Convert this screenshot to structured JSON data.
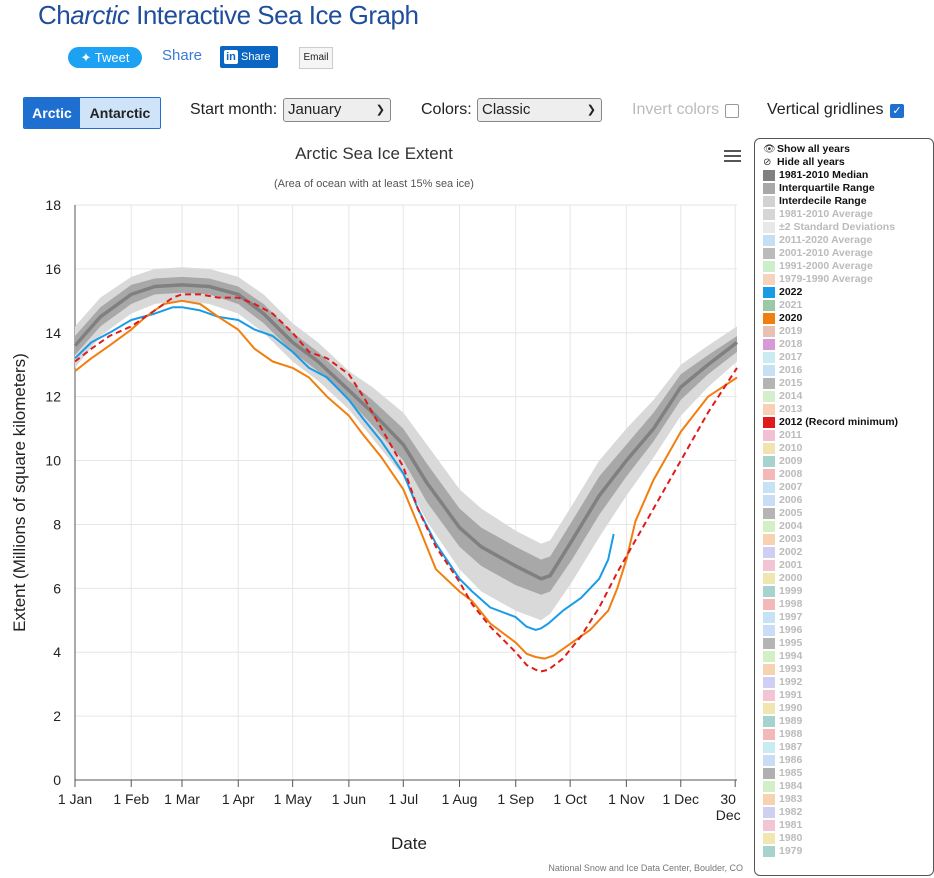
{
  "page": {
    "title_prefix": "Ch",
    "title_italic": "arctic",
    "title_suffix": " Interactive Sea Ice Graph"
  },
  "share": {
    "tweet": "Tweet",
    "share": "Share",
    "linkedin": "Share",
    "linkedin_logo": "in",
    "email": "Email"
  },
  "controls": {
    "arctic": "Arctic",
    "antarctic": "Antarctic",
    "start_month_label": "Start month:",
    "start_month_value": "January",
    "colors_label": "Colors:",
    "colors_value": "Classic",
    "invert_label": "Invert colors",
    "invert_checked": false,
    "gridlines_label": "Vertical gridlines",
    "gridlines_checked": true
  },
  "chart_data": {
    "type": "line",
    "title": "Arctic Sea Ice Extent",
    "subtitle": "(Area of ocean with at least 15% sea ice)",
    "xlabel": "Date",
    "ylabel": "Extent (Millions of square kilometers)",
    "credit": "National Snow and Ice Data Center, Boulder, CO",
    "ylim": [
      0,
      18
    ],
    "y_ticks": [
      0,
      2,
      4,
      6,
      8,
      10,
      12,
      14,
      16,
      18
    ],
    "xlim_day_of_year": [
      1,
      366
    ],
    "x_ticks": [
      {
        "day": 1,
        "label": "1 Jan"
      },
      {
        "day": 32,
        "label": "1 Feb"
      },
      {
        "day": 60,
        "label": "1 Mar"
      },
      {
        "day": 91,
        "label": "1 Apr"
      },
      {
        "day": 121,
        "label": "1 May"
      },
      {
        "day": 152,
        "label": "1 Jun"
      },
      {
        "day": 182,
        "label": "1 Jul"
      },
      {
        "day": 213,
        "label": "1 Aug"
      },
      {
        "day": 244,
        "label": "1 Sep"
      },
      {
        "day": 274,
        "label": "1 Oct"
      },
      {
        "day": 305,
        "label": "1 Nov"
      },
      {
        "day": 335,
        "label": "1 Dec"
      },
      {
        "day": 365,
        "label": "30",
        "label2": "Dec"
      }
    ],
    "vertical_gridlines": true,
    "series": [
      {
        "name": "1981-2010 Median",
        "color": "#808080",
        "x": [
          1,
          15,
          32,
          45,
          60,
          75,
          91,
          105,
          121,
          135,
          152,
          165,
          182,
          195,
          213,
          225,
          244,
          258,
          263,
          275,
          290,
          305,
          320,
          335,
          350,
          366
        ],
        "y": [
          13.6,
          14.5,
          15.2,
          15.45,
          15.5,
          15.45,
          15.2,
          14.6,
          13.7,
          13.1,
          12.2,
          11.5,
          10.5,
          9.3,
          7.9,
          7.3,
          6.7,
          6.3,
          6.4,
          7.5,
          8.9,
          10.0,
          11.0,
          12.3,
          13.0,
          13.7
        ]
      },
      {
        "name": "Interquartile Range",
        "color": "#a8a8a8",
        "x": [
          1,
          15,
          32,
          45,
          60,
          75,
          91,
          105,
          121,
          135,
          152,
          165,
          182,
          195,
          213,
          225,
          244,
          258,
          263,
          275,
          290,
          305,
          320,
          335,
          350,
          366
        ],
        "y_low": [
          13.3,
          14.2,
          14.9,
          15.2,
          15.25,
          15.2,
          14.9,
          14.3,
          13.4,
          12.8,
          11.9,
          11.1,
          10.0,
          8.7,
          7.3,
          6.7,
          6.1,
          5.8,
          5.9,
          6.9,
          8.3,
          9.5,
          10.6,
          11.9,
          12.7,
          13.4
        ],
        "y_high": [
          13.9,
          14.8,
          15.5,
          15.7,
          15.75,
          15.7,
          15.45,
          14.9,
          14.0,
          13.4,
          12.5,
          11.9,
          11.0,
          9.9,
          8.5,
          7.9,
          7.3,
          6.9,
          7.0,
          8.1,
          9.5,
          10.5,
          11.5,
          12.7,
          13.3,
          13.9
        ]
      },
      {
        "name": "Interdecile Range",
        "color": "#d9d9d9",
        "x": [
          1,
          15,
          32,
          45,
          60,
          75,
          91,
          105,
          121,
          135,
          152,
          165,
          182,
          195,
          213,
          225,
          244,
          258,
          263,
          275,
          290,
          305,
          320,
          335,
          350,
          366
        ],
        "y_low": [
          12.9,
          13.9,
          14.6,
          14.9,
          15.0,
          14.9,
          14.6,
          14.0,
          13.1,
          12.5,
          11.6,
          10.7,
          9.5,
          8.1,
          6.6,
          5.9,
          5.3,
          5.0,
          5.2,
          6.2,
          7.6,
          8.9,
          10.1,
          11.4,
          12.3,
          13.1
        ],
        "y_high": [
          14.2,
          15.1,
          15.75,
          16.0,
          16.05,
          16.0,
          15.75,
          15.2,
          14.3,
          13.7,
          12.8,
          12.3,
          11.5,
          10.5,
          9.1,
          8.5,
          7.8,
          7.4,
          7.5,
          8.6,
          10.0,
          11.0,
          11.9,
          13.0,
          13.6,
          14.2
        ]
      },
      {
        "name": "2022",
        "color": "#1a9be6",
        "x": [
          1,
          10,
          20,
          32,
          45,
          55,
          60,
          70,
          80,
          91,
          100,
          110,
          121,
          130,
          140,
          152,
          160,
          170,
          182,
          190,
          200,
          213,
          220,
          230,
          244,
          250,
          255,
          258,
          262,
          270,
          280,
          290,
          295,
          298
        ],
        "y": [
          13.2,
          13.7,
          14.0,
          14.4,
          14.6,
          14.8,
          14.8,
          14.7,
          14.5,
          14.4,
          14.1,
          13.9,
          13.4,
          12.9,
          12.6,
          11.9,
          11.3,
          10.6,
          9.6,
          8.5,
          7.4,
          6.3,
          5.9,
          5.4,
          5.1,
          4.8,
          4.7,
          4.75,
          4.9,
          5.3,
          5.7,
          6.3,
          6.9,
          7.7
        ]
      },
      {
        "name": "2020",
        "color": "#f07f0f",
        "x": [
          1,
          10,
          20,
          32,
          40,
          50,
          60,
          70,
          80,
          91,
          100,
          110,
          121,
          130,
          140,
          152,
          160,
          170,
          182,
          190,
          200,
          213,
          220,
          230,
          244,
          250,
          255,
          260,
          265,
          275,
          285,
          295,
          300,
          305,
          310,
          320,
          335,
          350,
          366
        ],
        "y": [
          12.8,
          13.2,
          13.6,
          14.1,
          14.5,
          14.9,
          15.0,
          14.9,
          14.5,
          14.1,
          13.5,
          13.1,
          12.9,
          12.6,
          12.0,
          11.4,
          10.8,
          10.1,
          9.1,
          8.0,
          6.6,
          5.9,
          5.6,
          4.9,
          4.3,
          3.95,
          3.85,
          3.8,
          3.9,
          4.3,
          4.7,
          5.3,
          6.0,
          6.9,
          8.1,
          9.4,
          10.9,
          12.0,
          12.6
        ]
      },
      {
        "name": "2012 (Record minimum)",
        "color": "#e01b1b",
        "x": [
          1,
          10,
          20,
          32,
          45,
          55,
          60,
          70,
          80,
          91,
          100,
          110,
          121,
          130,
          140,
          152,
          160,
          170,
          182,
          190,
          200,
          213,
          220,
          230,
          244,
          250,
          255,
          258,
          262,
          270,
          280,
          290,
          300,
          310,
          320,
          335,
          350,
          366
        ],
        "y": [
          13.1,
          13.5,
          13.9,
          14.2,
          14.7,
          15.1,
          15.2,
          15.2,
          15.1,
          15.1,
          14.9,
          14.6,
          14.0,
          13.4,
          13.2,
          12.7,
          12.0,
          11.0,
          9.8,
          8.5,
          7.3,
          6.2,
          5.5,
          4.8,
          4.0,
          3.6,
          3.45,
          3.4,
          3.45,
          3.8,
          4.5,
          5.4,
          6.5,
          7.5,
          8.5,
          10.0,
          11.5,
          12.9
        ]
      }
    ]
  },
  "menu": {
    "icon": "hamburger-icon"
  },
  "legend": {
    "show_all": "Show all years",
    "hide_all": "Hide all years",
    "items": [
      {
        "label": "1981-2010 Median",
        "color": "#808080",
        "on": true
      },
      {
        "label": "Interquartile Range",
        "color": "#a8a8a8",
        "on": true
      },
      {
        "label": "Interdecile Range",
        "color": "#d2d2d2",
        "on": true
      },
      {
        "label": "1981-2010 Average",
        "color": "#d6d6d6",
        "on": false
      },
      {
        "label": "±2 Standard Deviations",
        "color": "#e8e8e8",
        "on": false
      },
      {
        "label": "2011-2020 Average",
        "color": "#c7dff5",
        "on": false
      },
      {
        "label": "2001-2010 Average",
        "color": "#bbbbbb",
        "on": false
      },
      {
        "label": "1991-2000 Average",
        "color": "#cdeecb",
        "on": false
      },
      {
        "label": "1979-1990 Average",
        "color": "#f7d2bc",
        "on": false
      },
      {
        "label": "2022",
        "color": "#1a9be6",
        "on": true
      },
      {
        "label": "2021",
        "color": "#9cc8a8",
        "on": false
      },
      {
        "label": "2020",
        "color": "#f07f0f",
        "on": true
      },
      {
        "label": "2019",
        "color": "#e7c2b0",
        "on": false
      },
      {
        "label": "2018",
        "color": "#d89ad6",
        "on": false
      },
      {
        "label": "2017",
        "color": "#c9ecf2",
        "on": false
      },
      {
        "label": "2016",
        "color": "#c8e0f3",
        "on": false
      },
      {
        "label": "2015",
        "color": "#b4b4b4",
        "on": false
      },
      {
        "label": "2014",
        "color": "#d3efcb",
        "on": false
      },
      {
        "label": "2013",
        "color": "#f7d1b6",
        "on": false
      },
      {
        "label": "2012 (Record minimum)",
        "color": "#e01b1b",
        "on": true
      },
      {
        "label": "2011",
        "color": "#f3bfd2",
        "on": false
      },
      {
        "label": "2010",
        "color": "#f0e3b0",
        "on": false
      },
      {
        "label": "2009",
        "color": "#a7d3cf",
        "on": false
      },
      {
        "label": "2008",
        "color": "#f3b8b8",
        "on": false
      },
      {
        "label": "2007",
        "color": "#c6e3f5",
        "on": false
      },
      {
        "label": "2006",
        "color": "#c9def5",
        "on": false
      },
      {
        "label": "2005",
        "color": "#b5b5b5",
        "on": false
      },
      {
        "label": "2004",
        "color": "#d3efc6",
        "on": false
      },
      {
        "label": "2003",
        "color": "#f7d2b0",
        "on": false
      },
      {
        "label": "2002",
        "color": "#cfcff3",
        "on": false
      },
      {
        "label": "2001",
        "color": "#f3c4d3",
        "on": false
      },
      {
        "label": "2000",
        "color": "#f0e7b0",
        "on": false
      },
      {
        "label": "1999",
        "color": "#a7d3cf",
        "on": false
      },
      {
        "label": "1998",
        "color": "#f3b8b8",
        "on": false
      },
      {
        "label": "1997",
        "color": "#c6e3f5",
        "on": false
      },
      {
        "label": "1996",
        "color": "#c9def5",
        "on": false
      },
      {
        "label": "1995",
        "color": "#b5b5b5",
        "on": false
      },
      {
        "label": "1994",
        "color": "#d3efc6",
        "on": false
      },
      {
        "label": "1993",
        "color": "#f7d2b0",
        "on": false
      },
      {
        "label": "1992",
        "color": "#cfcff3",
        "on": false
      },
      {
        "label": "1991",
        "color": "#f3c4d3",
        "on": false
      },
      {
        "label": "1990",
        "color": "#f0e7b0",
        "on": false
      },
      {
        "label": "1989",
        "color": "#a7d3cf",
        "on": false
      },
      {
        "label": "1988",
        "color": "#f3b8b8",
        "on": false
      },
      {
        "label": "1987",
        "color": "#c9ecf2",
        "on": false
      },
      {
        "label": "1986",
        "color": "#c9def5",
        "on": false
      },
      {
        "label": "1985",
        "color": "#b0b0b0",
        "on": false
      },
      {
        "label": "1984",
        "color": "#d3efc6",
        "on": false
      },
      {
        "label": "1983",
        "color": "#f7d2b0",
        "on": false
      },
      {
        "label": "1982",
        "color": "#cfcff3",
        "on": false
      },
      {
        "label": "1981",
        "color": "#f3c4d3",
        "on": false
      },
      {
        "label": "1980",
        "color": "#f0e7b0",
        "on": false
      },
      {
        "label": "1979",
        "color": "#a7d3cf",
        "on": false
      }
    ]
  }
}
